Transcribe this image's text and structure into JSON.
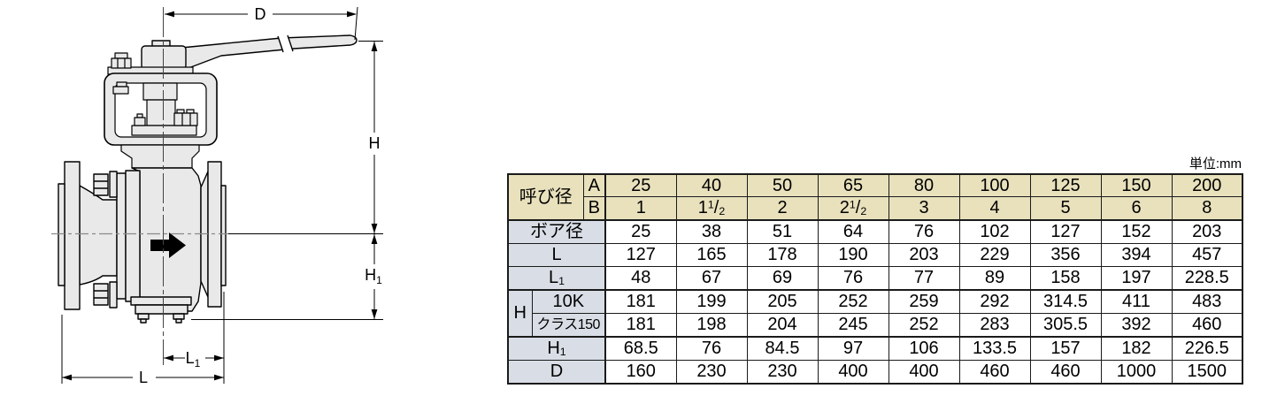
{
  "diagram": {
    "dim_labels": {
      "d": "D",
      "h": "H",
      "h1": "H1",
      "l1": "L1",
      "l": "L"
    },
    "flow_arrow_icon": "right-arrow"
  },
  "table": {
    "unit_note": "単位:mm",
    "nominal_header": {
      "label": "呼び径",
      "row_a": {
        "label": "A",
        "values": [
          "25",
          "40",
          "50",
          "65",
          "80",
          "100",
          "125",
          "150",
          "200"
        ]
      },
      "row_b": {
        "label": "B",
        "values": [
          "1",
          "1 1/2",
          "2",
          "2 1/2",
          "3",
          "4",
          "5",
          "6",
          "8"
        ]
      }
    },
    "rows": [
      {
        "label": "ボア径",
        "values": [
          "25",
          "38",
          "51",
          "64",
          "76",
          "102",
          "127",
          "152",
          "203"
        ]
      },
      {
        "label": "L",
        "values": [
          "127",
          "165",
          "178",
          "190",
          "203",
          "229",
          "356",
          "394",
          "457"
        ]
      },
      {
        "label": "L1",
        "values": [
          "48",
          "67",
          "69",
          "76",
          "77",
          "89",
          "158",
          "197",
          "228.5"
        ]
      },
      {
        "group": "H",
        "label": "10K",
        "values": [
          "181",
          "199",
          "205",
          "252",
          "259",
          "292",
          "314.5",
          "411",
          "483"
        ]
      },
      {
        "group": "H",
        "label": "クラス150",
        "values": [
          "181",
          "198",
          "204",
          "245",
          "252",
          "283",
          "305.5",
          "392",
          "460"
        ]
      },
      {
        "label": "H1",
        "values": [
          "68.5",
          "76",
          "84.5",
          "97",
          "106",
          "133.5",
          "157",
          "182",
          "226.5"
        ]
      },
      {
        "label": "D",
        "values": [
          "160",
          "230",
          "230",
          "400",
          "400",
          "460",
          "460",
          "1000",
          "1500"
        ]
      }
    ],
    "colors": {
      "header_bg": "#e8e1bc",
      "row_label_bg": "#d9dee6",
      "border": "#1a1a1a"
    }
  }
}
